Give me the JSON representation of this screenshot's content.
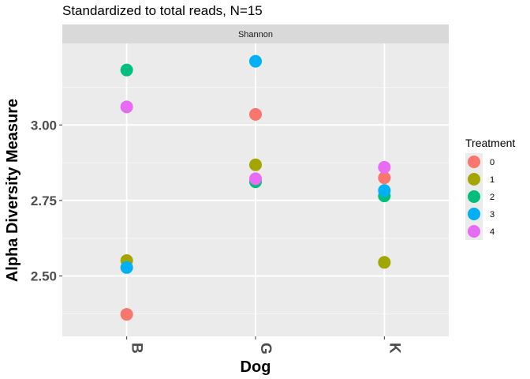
{
  "chart_data": {
    "type": "scatter",
    "title": "Standardized to total reads, N=15",
    "facet_label": "Shannon",
    "xlabel": "Dog",
    "ylabel": "Alpha Diversity Measure",
    "categories": [
      "B",
      "G",
      "K"
    ],
    "yticks": [
      2.5,
      2.75,
      3.0
    ],
    "ytick_labels": [
      "2.50",
      "2.75",
      "3.00"
    ],
    "ylim": [
      2.3,
      3.27
    ],
    "grid": true,
    "legend": {
      "title": "Treatment",
      "placement": "right",
      "entries": [
        {
          "label": "0",
          "color": "#F8766D"
        },
        {
          "label": "1",
          "color": "#A3A500"
        },
        {
          "label": "2",
          "color": "#00BF7D"
        },
        {
          "label": "3",
          "color": "#00B0F6"
        },
        {
          "label": "4",
          "color": "#E76BF3"
        }
      ]
    },
    "series": [
      {
        "name": "0",
        "color": "#F8766D",
        "points": [
          {
            "x": "B",
            "y": 2.373
          },
          {
            "x": "G",
            "y": 3.035
          },
          {
            "x": "K",
            "y": 2.825
          }
        ]
      },
      {
        "name": "1",
        "color": "#A3A500",
        "points": [
          {
            "x": "B",
            "y": 2.551
          },
          {
            "x": "G",
            "y": 2.868
          },
          {
            "x": "K",
            "y": 2.545
          }
        ]
      },
      {
        "name": "2",
        "color": "#00BF7D",
        "points": [
          {
            "x": "B",
            "y": 3.182
          },
          {
            "x": "G",
            "y": 2.812
          },
          {
            "x": "K",
            "y": 2.765
          }
        ]
      },
      {
        "name": "3",
        "color": "#00B0F6",
        "points": [
          {
            "x": "B",
            "y": 2.528
          },
          {
            "x": "G",
            "y": 3.211
          },
          {
            "x": "K",
            "y": 2.783
          }
        ]
      },
      {
        "name": "4",
        "color": "#E76BF3",
        "points": [
          {
            "x": "B",
            "y": 3.06
          },
          {
            "x": "G",
            "y": 2.822
          },
          {
            "x": "K",
            "y": 2.86
          }
        ]
      }
    ]
  }
}
